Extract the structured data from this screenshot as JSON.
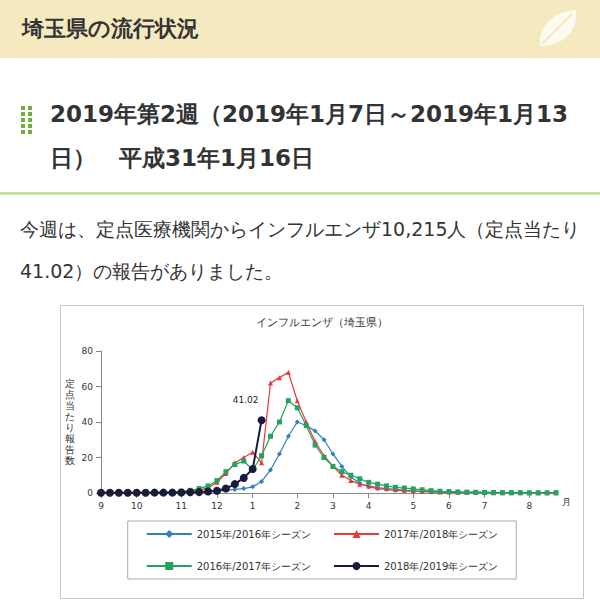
{
  "header": {
    "title": "埼玉県の流行状況"
  },
  "heading": "2019年第2週（2019年1月7日～2019年1月13日）　平成31年1月16日",
  "paragraph": "今週は、定点医療機関からインフルエンザ10,215人（定点当たり41.02）の報告がありました。",
  "chart_data": {
    "type": "line",
    "title": "インフルエンザ（埼玉県）",
    "ylabel": "定点当たり報告数",
    "xlabel": "月",
    "categories": [
      "9",
      null,
      null,
      null,
      "10",
      null,
      null,
      null,
      null,
      "11",
      null,
      null,
      null,
      "12",
      null,
      null,
      null,
      "1",
      null,
      null,
      null,
      null,
      "2",
      null,
      null,
      null,
      "3",
      null,
      null,
      null,
      "4",
      null,
      null,
      null,
      null,
      "5",
      null,
      null,
      null,
      "6",
      null,
      null,
      null,
      "7",
      null,
      null,
      null,
      null,
      "8",
      null,
      null,
      null
    ],
    "ylim": [
      0,
      80
    ],
    "yticks": [
      0,
      20,
      40,
      60,
      80
    ],
    "grid": false,
    "legend": "bottom",
    "series": [
      {
        "name": "2015年/2016年シーズン",
        "color": "#2f7fc1",
        "marker": "diamond",
        "values": [
          0.1,
          0.1,
          0.1,
          0.1,
          0.2,
          0.2,
          0.2,
          0.3,
          0.3,
          0.4,
          0.5,
          0.6,
          0.8,
          1.0,
          1.5,
          2.0,
          2.5,
          3.5,
          6.5,
          13,
          22,
          32,
          40,
          38,
          35,
          30,
          22,
          15,
          9,
          5.5,
          3.5,
          2.5,
          2,
          1.5,
          1.2,
          1,
          0.8,
          0.6,
          0.5,
          0.4,
          0.4,
          0.3,
          0.3,
          0.3,
          0.2,
          0.2,
          0.2,
          0.2,
          0.1,
          0.1,
          0.1,
          0.1
        ]
      },
      {
        "name": "2017年/2018年シーズン",
        "color": "#e8383d",
        "marker": "triangle",
        "values": [
          0.1,
          0.1,
          0.1,
          0.1,
          0.1,
          0.2,
          0.2,
          0.3,
          0.4,
          0.6,
          0.9,
          1.5,
          3,
          6,
          11,
          17,
          20,
          23,
          17,
          62,
          65,
          68,
          52,
          40,
          29,
          21,
          15,
          10,
          7,
          5,
          4,
          3,
          2.5,
          2,
          1.5,
          1.2,
          1,
          0.8,
          0.6,
          0.5,
          0.4,
          0.4,
          0.3,
          0.3,
          0.2,
          0.2,
          0.2,
          0.2,
          0.1,
          0.1,
          0.1,
          0.1
        ]
      },
      {
        "name": "2016年/2017年シーズン",
        "color": "#22a35e",
        "marker": "square",
        "values": [
          0.1,
          0.1,
          0.1,
          0.2,
          0.2,
          0.3,
          0.4,
          0.5,
          0.7,
          1.0,
          1.5,
          2.5,
          4,
          7,
          12,
          16,
          18,
          13,
          21,
          32,
          40,
          52,
          48,
          38,
          27,
          20,
          15,
          12,
          10,
          8,
          6,
          5,
          4,
          3.2,
          2.8,
          2.3,
          1.8,
          1.3,
          1,
          0.8,
          0.6,
          0.5,
          0.4,
          0.3,
          0.3,
          0.2,
          0.2,
          0.2,
          0.1,
          0.1,
          0.1,
          0.1
        ]
      },
      {
        "name": "2018年/2019年シーズン",
        "color": "#1a1a3a",
        "marker": "circle",
        "values": [
          0.1,
          0.1,
          0.1,
          0.1,
          0.1,
          0.1,
          0.2,
          0.2,
          0.2,
          0.3,
          0.4,
          0.5,
          0.8,
          1.3,
          2.5,
          5.0,
          8.5,
          13.5,
          41.02,
          null,
          null,
          null,
          null,
          null,
          null,
          null,
          null,
          null,
          null,
          null,
          null,
          null,
          null,
          null,
          null,
          null,
          null,
          null,
          null,
          null,
          null,
          null,
          null,
          null,
          null,
          null,
          null,
          null,
          null,
          null,
          null,
          null
        ]
      }
    ],
    "annotations": [
      {
        "text": "41.02",
        "series": "2018年/2019年シーズン",
        "y": 41.02
      }
    ]
  }
}
